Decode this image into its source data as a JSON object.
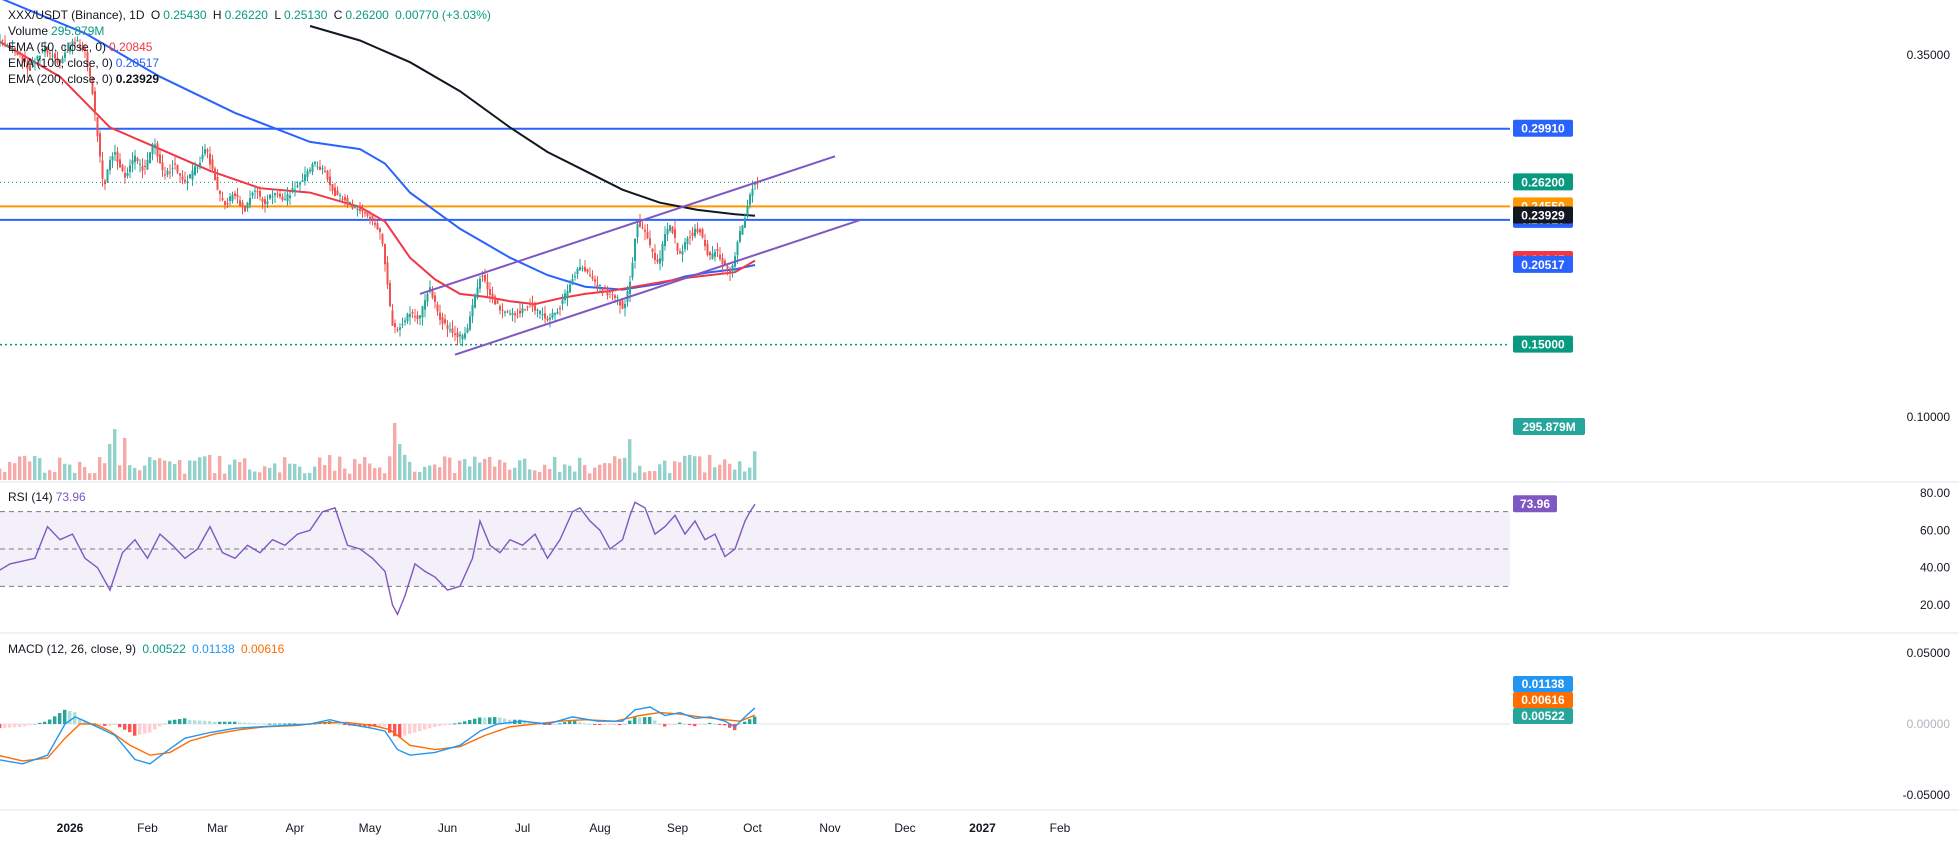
{
  "legend": {
    "symbol": "XXX/USDT (Binance), 1D",
    "ohlc": {
      "o_label": "O",
      "o": "0.25430",
      "h_label": "H",
      "h": "0.26220",
      "l_label": "L",
      "l": "0.25130",
      "c_label": "C",
      "c": "0.26200",
      "change": "0.00770 (+3.03%)"
    },
    "volume_label": "Volume",
    "volume": "295.879M",
    "ema50_label": "EMA (50, close, 0)",
    "ema50": "0.20845",
    "ema100_label": "EMA (100, close, 0)",
    "ema100": "0.20517",
    "ema200_label": "EMA (200, close, 0)",
    "ema200": "0.23929",
    "rsi_label": "RSI (14)",
    "rsi": "73.96",
    "macd_label": "MACD (12, 26, close, 9)",
    "macd_hist": "0.00522",
    "macd_line": "0.01138",
    "macd_signal": "0.00616"
  },
  "colors": {
    "up": "#26a69a",
    "down": "#ef5350",
    "ema50": "#f23645",
    "ema100": "#2962ff",
    "ema200": "#131722",
    "level_blue": "#2962ff",
    "level_orange": "#ff9800",
    "level_green": "#089981",
    "channel": "#7e57c2",
    "rsi": "#7e57c2",
    "macd": "#2196f3",
    "signal": "#ff6d00"
  },
  "chart_data": {
    "type": "candlestick",
    "x_axis": {
      "start_label": "2026",
      "months": [
        "2026",
        "Feb",
        "Mar",
        "Apr",
        "May",
        "Jun",
        "Jul",
        "Aug",
        "Sep",
        "Oct",
        "Nov",
        "Dec",
        "2027",
        "Feb"
      ],
      "month_days": [
        0,
        31,
        59,
        90,
        120,
        151,
        181,
        212,
        243,
        273,
        304,
        334,
        365,
        396
      ],
      "last_day": 265
    },
    "price_axis": {
      "ticks": [
        0.35,
        0.1
      ],
      "tick_labels": [
        "0.35000",
        "0.10000"
      ],
      "ylim": [
        0.085,
        0.37
      ]
    },
    "price_path": [
      [
        -5,
        0.36
      ],
      [
        3,
        0.352
      ],
      [
        8,
        0.34
      ],
      [
        14,
        0.355
      ],
      [
        20,
        0.345
      ],
      [
        26,
        0.36
      ],
      [
        30,
        0.355
      ],
      [
        33,
        0.33
      ],
      [
        36,
        0.285
      ],
      [
        38,
        0.255
      ],
      [
        39,
        0.27
      ],
      [
        42,
        0.285
      ],
      [
        46,
        0.265
      ],
      [
        50,
        0.28
      ],
      [
        54,
        0.27
      ],
      [
        58,
        0.29
      ],
      [
        62,
        0.265
      ],
      [
        66,
        0.275
      ],
      [
        70,
        0.26
      ],
      [
        74,
        0.27
      ],
      [
        79,
        0.285
      ],
      [
        83,
        0.26
      ],
      [
        86,
        0.245
      ],
      [
        90,
        0.255
      ],
      [
        94,
        0.242
      ],
      [
        98,
        0.258
      ],
      [
        102,
        0.248
      ],
      [
        106,
        0.255
      ],
      [
        110,
        0.25
      ],
      [
        114,
        0.258
      ],
      [
        118,
        0.265
      ],
      [
        122,
        0.275
      ],
      [
        126,
        0.27
      ],
      [
        130,
        0.255
      ],
      [
        134,
        0.25
      ],
      [
        138,
        0.245
      ],
      [
        142,
        0.242
      ],
      [
        146,
        0.235
      ],
      [
        149,
        0.225
      ],
      [
        151,
        0.2
      ],
      [
        153,
        0.165
      ],
      [
        155,
        0.16
      ],
      [
        160,
        0.172
      ],
      [
        164,
        0.168
      ],
      [
        168,
        0.19
      ],
      [
        172,
        0.17
      ],
      [
        176,
        0.16
      ],
      [
        180,
        0.155
      ],
      [
        183,
        0.158
      ],
      [
        186,
        0.18
      ],
      [
        189,
        0.2
      ],
      [
        192,
        0.185
      ],
      [
        196,
        0.175
      ],
      [
        200,
        0.17
      ],
      [
        204,
        0.172
      ],
      [
        208,
        0.178
      ],
      [
        212,
        0.172
      ],
      [
        216,
        0.168
      ],
      [
        220,
        0.175
      ],
      [
        224,
        0.19
      ],
      [
        228,
        0.205
      ],
      [
        232,
        0.198
      ],
      [
        236,
        0.19
      ],
      [
        240,
        0.185
      ],
      [
        243,
        0.182
      ],
      [
        246,
        0.175
      ],
      [
        249,
        0.2
      ],
      [
        251,
        0.235
      ],
      [
        254,
        0.23
      ],
      [
        257,
        0.215
      ],
      [
        260,
        0.205
      ],
      [
        262,
        0.225
      ],
      [
        265,
        0.232
      ],
      [
        268,
        0.21
      ],
      [
        272,
        0.225
      ],
      [
        276,
        0.23
      ],
      [
        280,
        0.21
      ],
      [
        283,
        0.215
      ],
      [
        286,
        0.205
      ],
      [
        289,
        0.2
      ],
      [
        292,
        0.225
      ],
      [
        294,
        0.235
      ],
      [
        296,
        0.252
      ],
      [
        298,
        0.262
      ]
    ],
    "ema50": [
      [
        -5,
        0.36
      ],
      [
        20,
        0.335
      ],
      [
        40,
        0.3
      ],
      [
        60,
        0.285
      ],
      [
        80,
        0.27
      ],
      [
        100,
        0.258
      ],
      [
        120,
        0.255
      ],
      [
        140,
        0.245
      ],
      [
        150,
        0.235
      ],
      [
        160,
        0.21
      ],
      [
        170,
        0.195
      ],
      [
        180,
        0.185
      ],
      [
        190,
        0.183
      ],
      [
        200,
        0.18
      ],
      [
        210,
        0.178
      ],
      [
        220,
        0.182
      ],
      [
        230,
        0.185
      ],
      [
        240,
        0.187
      ],
      [
        250,
        0.19
      ],
      [
        260,
        0.193
      ],
      [
        270,
        0.196
      ],
      [
        280,
        0.198
      ],
      [
        290,
        0.2
      ],
      [
        298,
        0.208
      ]
    ],
    "ema100": [
      [
        -5,
        0.39
      ],
      [
        30,
        0.365
      ],
      [
        60,
        0.335
      ],
      [
        90,
        0.31
      ],
      [
        120,
        0.29
      ],
      [
        140,
        0.285
      ],
      [
        150,
        0.275
      ],
      [
        160,
        0.255
      ],
      [
        180,
        0.23
      ],
      [
        200,
        0.21
      ],
      [
        215,
        0.198
      ],
      [
        230,
        0.19
      ],
      [
        245,
        0.188
      ],
      [
        260,
        0.192
      ],
      [
        270,
        0.197
      ],
      [
        280,
        0.2
      ],
      [
        290,
        0.202
      ],
      [
        298,
        0.205
      ]
    ],
    "ema200": [
      [
        120,
        0.37
      ],
      [
        140,
        0.36
      ],
      [
        160,
        0.345
      ],
      [
        180,
        0.325
      ],
      [
        200,
        0.3
      ],
      [
        215,
        0.283
      ],
      [
        230,
        0.27
      ],
      [
        245,
        0.257
      ],
      [
        260,
        0.248
      ],
      [
        275,
        0.243
      ],
      [
        290,
        0.24
      ],
      [
        298,
        0.239
      ]
    ],
    "horizontal_levels": [
      {
        "value": 0.2991,
        "label": "0.29910",
        "style": "solid",
        "color_key": "level_blue"
      },
      {
        "value": 0.2455,
        "label": "0.24550",
        "style": "solid",
        "color_key": "level_orange"
      },
      {
        "value": 0.2361,
        "label": "0.23610",
        "style": "solid",
        "color_key": "level_blue"
      },
      {
        "value": 0.15,
        "label": "0.15000",
        "style": "dotted",
        "color_key": "level_green"
      }
    ],
    "price_labels": [
      {
        "value": 0.262,
        "label": "0.26200",
        "bg": "#089981"
      },
      {
        "value": 0.2392,
        "label": "0.23929",
        "bg": "#131722"
      },
      {
        "value": 0.2084,
        "label": "0.20845",
        "bg": "#f23645"
      },
      {
        "value": 0.2051,
        "label": "0.20517",
        "bg": "#2962ff"
      }
    ],
    "last_price": 0.262,
    "channel": {
      "upper": [
        [
          164,
          0.185
        ],
        [
          330,
          0.28
        ]
      ],
      "lower": [
        [
          178,
          0.143
        ],
        [
          340,
          0.236
        ]
      ]
    },
    "volume": {
      "label": "295.879M",
      "max": 100,
      "spikes": [
        [
          42,
          85
        ],
        [
          45,
          70
        ],
        [
          40,
          60
        ],
        [
          154,
          95
        ],
        [
          156,
          60
        ],
        [
          247,
          68
        ],
        [
          298,
          48
        ],
        [
          300,
          50
        ]
      ]
    },
    "rsi": {
      "value_label": "73.96",
      "ticks": [
        80,
        60,
        40,
        20
      ],
      "tick_labels": [
        "80.00",
        "60.00",
        "40.00",
        "20.00"
      ],
      "ylim": [
        10,
        82
      ],
      "bands": [
        70,
        50,
        30
      ],
      "path": [
        [
          -5,
          38
        ],
        [
          0,
          42
        ],
        [
          10,
          45
        ],
        [
          15,
          62
        ],
        [
          20,
          55
        ],
        [
          25,
          58
        ],
        [
          30,
          45
        ],
        [
          35,
          40
        ],
        [
          40,
          28
        ],
        [
          45,
          48
        ],
        [
          50,
          55
        ],
        [
          55,
          45
        ],
        [
          60,
          58
        ],
        [
          65,
          52
        ],
        [
          70,
          45
        ],
        [
          75,
          50
        ],
        [
          80,
          62
        ],
        [
          85,
          48
        ],
        [
          90,
          45
        ],
        [
          95,
          52
        ],
        [
          100,
          48
        ],
        [
          105,
          55
        ],
        [
          110,
          52
        ],
        [
          115,
          58
        ],
        [
          120,
          60
        ],
        [
          125,
          70
        ],
        [
          130,
          72
        ],
        [
          135,
          52
        ],
        [
          140,
          50
        ],
        [
          145,
          45
        ],
        [
          150,
          38
        ],
        [
          153,
          20
        ],
        [
          155,
          15
        ],
        [
          158,
          25
        ],
        [
          162,
          42
        ],
        [
          166,
          38
        ],
        [
          170,
          35
        ],
        [
          175,
          28
        ],
        [
          180,
          30
        ],
        [
          185,
          45
        ],
        [
          188,
          65
        ],
        [
          192,
          52
        ],
        [
          196,
          48
        ],
        [
          200,
          55
        ],
        [
          205,
          52
        ],
        [
          210,
          58
        ],
        [
          215,
          45
        ],
        [
          220,
          55
        ],
        [
          225,
          70
        ],
        [
          228,
          72
        ],
        [
          232,
          65
        ],
        [
          236,
          60
        ],
        [
          240,
          50
        ],
        [
          245,
          55
        ],
        [
          248,
          68
        ],
        [
          250,
          75
        ],
        [
          254,
          72
        ],
        [
          258,
          58
        ],
        [
          262,
          62
        ],
        [
          266,
          68
        ],
        [
          270,
          58
        ],
        [
          274,
          65
        ],
        [
          278,
          55
        ],
        [
          282,
          58
        ],
        [
          286,
          46
        ],
        [
          290,
          50
        ],
        [
          294,
          65
        ],
        [
          296,
          70
        ],
        [
          298,
          74
        ]
      ]
    },
    "macd": {
      "ticks": [
        0.05,
        -0.05
      ],
      "tick_labels": [
        "0.05000",
        "-0.05000"
      ],
      "ylim": [
        -0.06,
        0.06
      ],
      "value_labels": [
        {
          "value": 0.01138,
          "label": "0.01138",
          "bg": "#2196f3"
        },
        {
          "value": 0.00616,
          "label": "0.00616",
          "bg": "#ff6d00"
        },
        {
          "value": 0.00522,
          "label": "0.00522",
          "bg": "#26a69a"
        }
      ],
      "macd_path": [
        [
          -5,
          -0.025
        ],
        [
          5,
          -0.028
        ],
        [
          15,
          -0.022
        ],
        [
          22,
          0.0
        ],
        [
          26,
          0.005
        ],
        [
          30,
          0.002
        ],
        [
          36,
          -0.003
        ],
        [
          42,
          -0.008
        ],
        [
          50,
          -0.025
        ],
        [
          56,
          -0.028
        ],
        [
          62,
          -0.02
        ],
        [
          70,
          -0.01
        ],
        [
          80,
          -0.006
        ],
        [
          90,
          -0.003
        ],
        [
          100,
          -0.002
        ],
        [
          110,
          -0.001
        ],
        [
          120,
          0.0
        ],
        [
          128,
          0.003
        ],
        [
          135,
          0.0
        ],
        [
          145,
          -0.003
        ],
        [
          150,
          -0.005
        ],
        [
          155,
          -0.018
        ],
        [
          160,
          -0.022
        ],
        [
          170,
          -0.02
        ],
        [
          180,
          -0.015
        ],
        [
          188,
          -0.005
        ],
        [
          195,
          0.0
        ],
        [
          205,
          0.002
        ],
        [
          215,
          0.0
        ],
        [
          225,
          0.005
        ],
        [
          235,
          0.002
        ],
        [
          245,
          0.002
        ],
        [
          250,
          0.01
        ],
        [
          256,
          0.012
        ],
        [
          262,
          0.006
        ],
        [
          268,
          0.008
        ],
        [
          274,
          0.004
        ],
        [
          280,
          0.005
        ],
        [
          286,
          0.002
        ],
        [
          290,
          -0.002
        ],
        [
          294,
          0.005
        ],
        [
          298,
          0.0114
        ]
      ],
      "signal_path": [
        [
          -5,
          -0.022
        ],
        [
          5,
          -0.026
        ],
        [
          15,
          -0.024
        ],
        [
          22,
          -0.01
        ],
        [
          28,
          0.0
        ],
        [
          34,
          0.0
        ],
        [
          40,
          -0.005
        ],
        [
          48,
          -0.015
        ],
        [
          56,
          -0.022
        ],
        [
          64,
          -0.02
        ],
        [
          72,
          -0.012
        ],
        [
          82,
          -0.007
        ],
        [
          92,
          -0.004
        ],
        [
          102,
          -0.002
        ],
        [
          115,
          -0.001
        ],
        [
          125,
          0.001
        ],
        [
          135,
          0.001
        ],
        [
          145,
          -0.001
        ],
        [
          152,
          -0.004
        ],
        [
          160,
          -0.015
        ],
        [
          170,
          -0.018
        ],
        [
          180,
          -0.016
        ],
        [
          190,
          -0.008
        ],
        [
          200,
          -0.002
        ],
        [
          210,
          0.0
        ],
        [
          220,
          0.002
        ],
        [
          230,
          0.003
        ],
        [
          242,
          0.002
        ],
        [
          252,
          0.006
        ],
        [
          260,
          0.008
        ],
        [
          268,
          0.007
        ],
        [
          276,
          0.005
        ],
        [
          286,
          0.003
        ],
        [
          292,
          0.002
        ],
        [
          298,
          0.0062
        ]
      ]
    }
  }
}
